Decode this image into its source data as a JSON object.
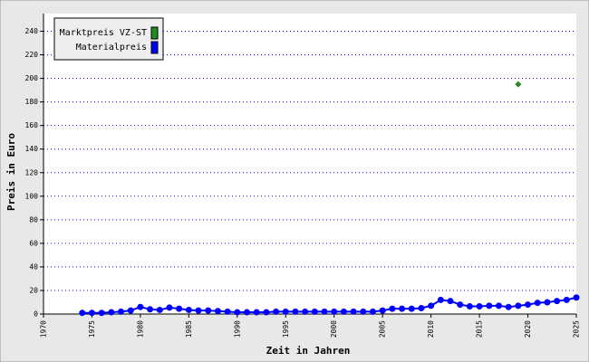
{
  "chart_data": {
    "type": "line",
    "x_label": "Zeit in Jahren",
    "y_label": "Preis in Euro",
    "xlim": [
      1970,
      2025
    ],
    "ylim": [
      0,
      255
    ],
    "xticks": [
      1970,
      1975,
      1980,
      1985,
      1990,
      1995,
      2000,
      2005,
      2010,
      2015,
      2020,
      2025
    ],
    "yticks": [
      0,
      20,
      40,
      60,
      80,
      100,
      120,
      140,
      160,
      180,
      200,
      220,
      240
    ],
    "grid": true,
    "legend": "top-left",
    "series": [
      {
        "name": "Marktpreis VZ-ST",
        "color": "#228b22",
        "marker": "diamond",
        "line": false,
        "x": [
          2019
        ],
        "values": [
          195
        ]
      },
      {
        "name": "Materialpreis",
        "color": "#0000ff",
        "marker": "circle",
        "line": true,
        "x": [
          1974,
          1975,
          1976,
          1977,
          1978,
          1979,
          1980,
          1981,
          1982,
          1983,
          1984,
          1985,
          1986,
          1987,
          1988,
          1989,
          1990,
          1991,
          1992,
          1993,
          1994,
          1995,
          1996,
          1997,
          1998,
          1999,
          2000,
          2001,
          2002,
          2003,
          2004,
          2005,
          2006,
          2007,
          2008,
          2009,
          2010,
          2011,
          2012,
          2013,
          2014,
          2015,
          2016,
          2017,
          2018,
          2019,
          2020,
          2021,
          2022,
          2023,
          2024,
          2025
        ],
        "values": [
          1,
          1,
          1,
          1.5,
          2,
          3,
          6,
          4,
          3.5,
          5.5,
          4.5,
          3.5,
          3,
          3,
          2.5,
          2,
          1.5,
          1.5,
          1.5,
          1.5,
          2,
          2,
          2,
          2,
          2,
          2,
          2,
          2,
          2,
          2,
          2,
          3,
          4.5,
          4.5,
          4.5,
          5,
          7,
          12,
          11,
          8,
          6.5,
          6.5,
          7,
          7,
          6,
          7,
          8,
          9.5,
          10,
          11,
          12,
          14
        ]
      }
    ]
  }
}
